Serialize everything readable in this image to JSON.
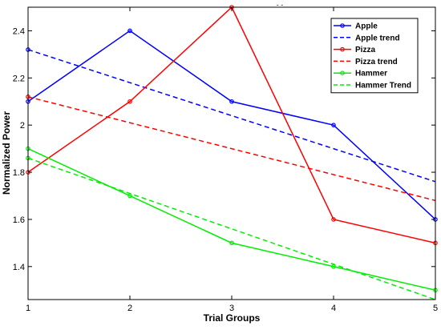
{
  "chart_data": {
    "type": "line",
    "title": "- -",
    "xlabel": "Trial Groups",
    "ylabel": "Normalized Power",
    "x": [
      1,
      2,
      3,
      4,
      5
    ],
    "xlim": [
      1,
      5
    ],
    "ylim": [
      1.26,
      2.5
    ],
    "xticks": [
      "1",
      "2",
      "3",
      "4",
      "5"
    ],
    "yticks": [
      1.4,
      1.6,
      1.8,
      2.0,
      2.2,
      2.4
    ],
    "ytick_labels": [
      "1.4",
      "1.6",
      "1.8",
      "2",
      "2.2",
      "2.4"
    ],
    "grid": false,
    "legend_position": "top-right",
    "series": [
      {
        "name": "Apple",
        "values": [
          2.1,
          2.4,
          2.1,
          2.0,
          1.6
        ],
        "color": "#0000ff",
        "style": "solid",
        "marker": "circle"
      },
      {
        "name": "Apple trend",
        "values": [
          2.32,
          2.18,
          2.04,
          1.9,
          1.76
        ],
        "color": "#0000ff",
        "style": "dashed",
        "marker": "circle-first"
      },
      {
        "name": "Pizza",
        "values": [
          1.8,
          2.1,
          2.5,
          1.6,
          1.5
        ],
        "color": "#ff0000",
        "style": "solid",
        "marker": "circle"
      },
      {
        "name": "Pizza trend",
        "values": [
          2.12,
          2.01,
          1.9,
          1.79,
          1.68
        ],
        "color": "#ff0000",
        "style": "dashed",
        "marker": "circle-first"
      },
      {
        "name": "Hammer",
        "values": [
          1.9,
          1.7,
          1.5,
          1.4,
          1.3
        ],
        "color": "#00ee00",
        "style": "solid",
        "marker": "circle"
      },
      {
        "name": "Hammer Trend",
        "values": [
          1.86,
          1.71,
          1.56,
          1.41,
          1.26
        ],
        "color": "#00ee00",
        "style": "dashed",
        "marker": "circle-first"
      }
    ]
  }
}
